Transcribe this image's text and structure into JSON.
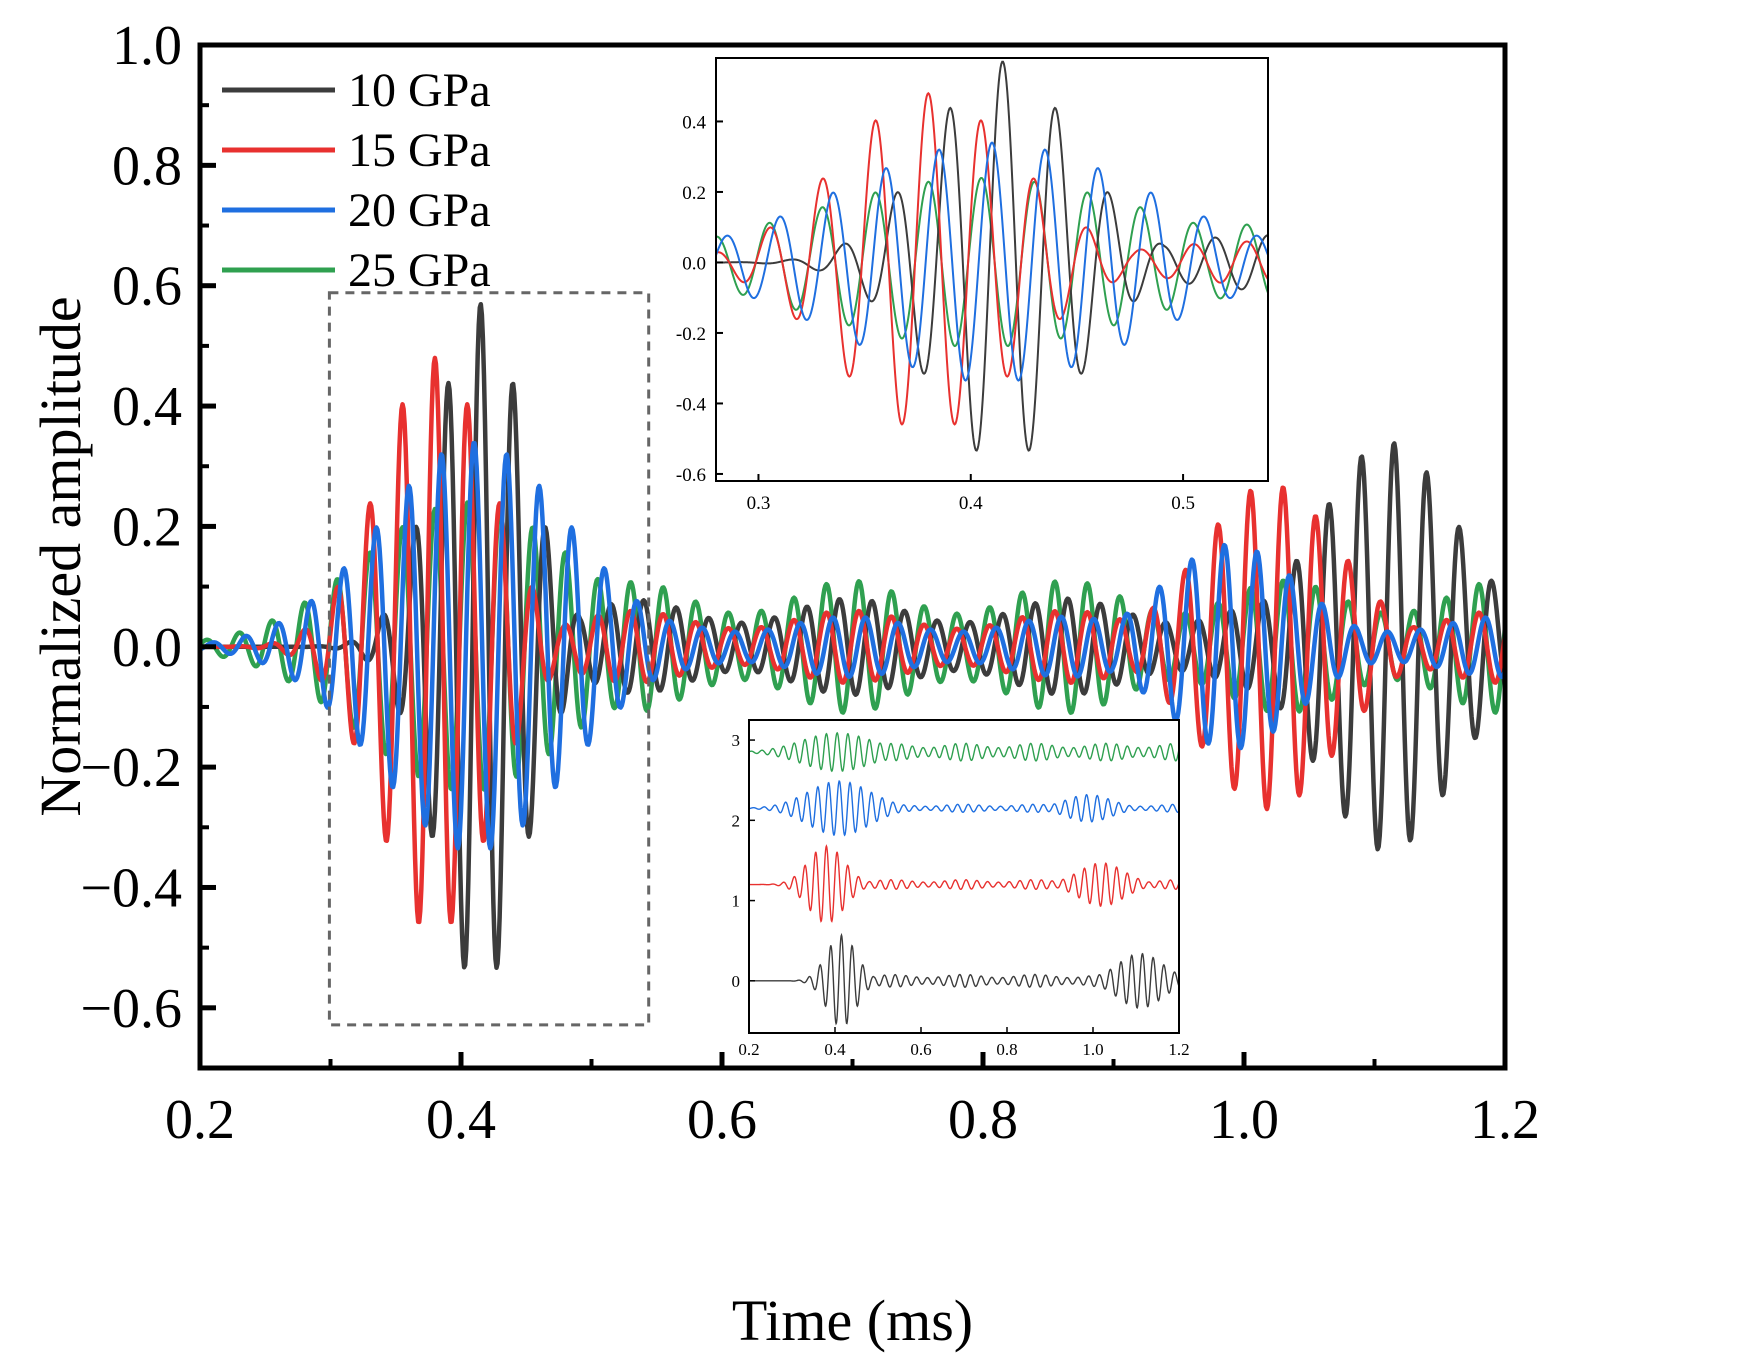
{
  "chart_data": [
    {
      "type": "line",
      "role": "main",
      "title": "",
      "xlabel": "Time (ms)",
      "ylabel": "Normalized amplitude",
      "xlim": [
        0.2,
        1.2
      ],
      "ylim": [
        -0.7,
        1.0
      ],
      "x_ticks": [
        0.2,
        0.4,
        0.6,
        0.8,
        1.0,
        1.2
      ],
      "x_tick_labels": [
        "0.2",
        "0.4",
        "0.6",
        "0.8",
        "1.0",
        "1.2"
      ],
      "y_ticks": [
        1.0,
        0.8,
        0.6,
        0.4,
        0.2,
        0.0,
        -0.2,
        -0.4,
        -0.6
      ],
      "y_tick_labels": [
        "1.0",
        "0.8",
        "0.6",
        "0.4",
        "0.2",
        "0.0",
        "−0.2",
        "−0.4",
        "−0.6"
      ],
      "legend_position": "top-left",
      "zoom_box": {
        "x_range": [
          0.28,
          0.54
        ],
        "y_range": [
          -0.62,
          0.58
        ]
      },
      "series": [
        {
          "name": "10 GPa",
          "color": "#3c3c3c",
          "freq_khz": 40,
          "arrival_ms": 0.358,
          "peak_time_ms": 0.415,
          "peak_amplitude": 0.57,
          "min_amplitude": -0.62,
          "coda_level": 0.08,
          "second_packet_center_ms": 1.11,
          "second_packet_amplitude": 0.34
        },
        {
          "name": "15 GPa",
          "color": "#e8312f",
          "freq_khz": 40,
          "arrival_ms": 0.31,
          "peak_time_ms": 0.38,
          "peak_amplitude": 0.48,
          "min_amplitude": -0.52,
          "coda_level": 0.06,
          "second_packet_center_ms": 1.02,
          "second_packet_amplitude": 0.27
        },
        {
          "name": "20 GPa",
          "color": "#1f6fe0",
          "freq_khz": 40,
          "arrival_ms": 0.29,
          "peak_time_ms": 0.41,
          "peak_amplitude": 0.34,
          "min_amplitude": -0.38,
          "coda_level": 0.05,
          "second_packet_center_ms": 0.99,
          "second_packet_amplitude": 0.17
        },
        {
          "name": "25 GPa",
          "color": "#2fa050",
          "freq_khz": 40,
          "arrival_ms": 0.27,
          "peak_time_ms": 0.405,
          "peak_amplitude": 0.24,
          "min_amplitude": -0.26,
          "coda_level": 0.11,
          "second_packet_center_ms": null,
          "second_packet_amplitude": 0.0
        }
      ]
    },
    {
      "type": "line",
      "role": "inset-zoom",
      "xlabel": "",
      "ylabel": "",
      "xlim": [
        0.28,
        0.54
      ],
      "ylim": [
        -0.62,
        0.58
      ],
      "x_ticks": [
        0.3,
        0.4,
        0.5
      ],
      "x_tick_labels": [
        "0.3",
        "0.4",
        "0.5"
      ],
      "y_ticks": [
        0.4,
        0.2,
        0.0,
        -0.2,
        -0.4,
        -0.6
      ],
      "y_tick_labels": [
        "0.4",
        "0.2",
        "0.0",
        "-0.2",
        "-0.4",
        "-0.6"
      ],
      "series_names": [
        "10 GPa",
        "15 GPa",
        "20 GPa",
        "25 GPa"
      ]
    },
    {
      "type": "line",
      "role": "inset-stacked",
      "xlabel": "",
      "ylabel": "",
      "xlim": [
        0.2,
        1.2
      ],
      "ylim": [
        -0.65,
        3.25
      ],
      "x_ticks": [
        0.2,
        0.4,
        0.6,
        0.8,
        1.0,
        1.2
      ],
      "x_tick_labels": [
        "0.2",
        "0.4",
        "0.6",
        "0.8",
        "1.0",
        "1.2"
      ],
      "y_ticks": [
        3,
        2,
        1,
        0
      ],
      "y_tick_labels": [
        "3",
        "2",
        "1",
        "0"
      ],
      "offsets": {
        "10 GPa": 0,
        "15 GPa": 1.2,
        "20 GPa": 2.15,
        "25 GPa": 2.85
      }
    }
  ]
}
